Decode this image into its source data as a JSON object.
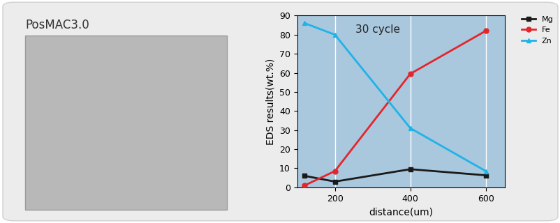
{
  "image_label": "PosMAC3.0",
  "chart_data": {
    "type": "line",
    "x": [
      120,
      200,
      400,
      600
    ],
    "series": [
      {
        "name": "Mg",
        "color": "#1a1a1a",
        "marker": "square",
        "values": [
          6,
          3,
          9.5,
          6.3
        ]
      },
      {
        "name": "Fe",
        "color": "#e3262b",
        "marker": "circle",
        "values": [
          1,
          8.5,
          59.5,
          82
        ]
      },
      {
        "name": "Zn",
        "color": "#1fb3e8",
        "marker": "triangle",
        "values": [
          86,
          80,
          31,
          8.5
        ]
      }
    ],
    "xlabel": "distance(um)",
    "ylabel": "EDS results(wt.%)",
    "annotations": [
      "30 cycle"
    ],
    "xlim": [
      100,
      650
    ],
    "xticks": [
      200,
      400,
      600
    ],
    "ylim": [
      0,
      90
    ],
    "yticks": [
      0,
      10,
      20,
      30,
      40,
      50,
      60,
      70,
      80,
      90
    ],
    "grid": true,
    "legend": "upper right"
  }
}
